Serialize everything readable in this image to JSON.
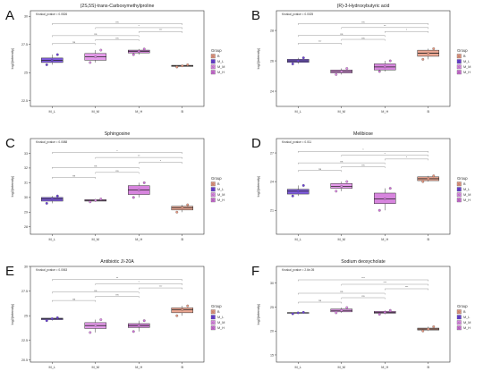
{
  "colors": {
    "M_L": "#6a3fd9",
    "M_M": "#e08ae8",
    "M_H": "#d070d8",
    "B": "#e89880",
    "frame": "#333333",
    "bracket": "#9a9a9a"
  },
  "legend_title": "Group",
  "groups": [
    "B",
    "M_L",
    "M_M",
    "M_H"
  ],
  "chart_data": [
    {
      "panel_letter": "A",
      "type": "boxplot",
      "title": "(2S,5S)-trans-Carboxymethylproline",
      "subtitle": "Kruskal_pvalue = 0.0526",
      "ylabel": "log2(intensity)",
      "categories": [
        "M_L",
        "M_M",
        "M_H",
        "B"
      ],
      "ylim": [
        22.0,
        30.5
      ],
      "yticks": [
        22.5,
        25.0,
        27.5,
        30.0
      ],
      "boxes": [
        {
          "group": "M_L",
          "min": 25.7,
          "q1": 25.9,
          "median": 26.1,
          "q3": 26.3,
          "max": 26.6,
          "points": [
            25.7,
            26.1,
            26.6
          ]
        },
        {
          "group": "M_M",
          "min": 25.9,
          "q1": 26.1,
          "median": 26.4,
          "q3": 26.7,
          "max": 27.0,
          "points": [
            25.9,
            26.4,
            27.0
          ]
        },
        {
          "group": "M_H",
          "min": 26.6,
          "q1": 26.75,
          "median": 26.9,
          "q3": 27.0,
          "max": 27.1,
          "points": [
            26.6,
            26.9,
            27.1
          ]
        },
        {
          "group": "B",
          "min": 25.5,
          "q1": 25.55,
          "median": 25.6,
          "q3": 25.65,
          "max": 25.7,
          "points": [
            25.5,
            25.6,
            25.7
          ]
        }
      ],
      "comparisons": [
        {
          "from": 0,
          "to": 1,
          "label": "ns"
        },
        {
          "from": 1,
          "to": 2,
          "label": "ns"
        },
        {
          "from": 0,
          "to": 2,
          "label": "ns"
        },
        {
          "from": 2,
          "to": 3,
          "label": "***"
        },
        {
          "from": 1,
          "to": 3,
          "label": "*"
        },
        {
          "from": 0,
          "to": 3,
          "label": "ns"
        }
      ]
    },
    {
      "panel_letter": "B",
      "type": "boxplot",
      "title": "(R)-3-Hydroxybutyric acid",
      "subtitle": "Kruskal_pvalue = 0.0025",
      "ylabel": "log2(intensity)",
      "categories": [
        "M_L",
        "M_M",
        "M_H",
        "B"
      ],
      "ylim": [
        23.0,
        29.3
      ],
      "yticks": [
        24,
        26,
        28
      ],
      "boxes": [
        {
          "group": "M_L",
          "min": 25.8,
          "q1": 25.9,
          "median": 26.0,
          "q3": 26.1,
          "max": 26.2,
          "points": [
            25.8,
            26.0,
            26.2
          ]
        },
        {
          "group": "M_M",
          "min": 25.1,
          "q1": 25.2,
          "median": 25.3,
          "q3": 25.4,
          "max": 25.5,
          "points": [
            25.1,
            25.3,
            25.5
          ]
        },
        {
          "group": "M_H",
          "min": 25.3,
          "q1": 25.4,
          "median": 25.6,
          "q3": 25.8,
          "max": 26.0,
          "points": [
            25.3,
            25.6,
            26.0
          ]
        },
        {
          "group": "B",
          "min": 26.1,
          "q1": 26.3,
          "median": 26.5,
          "q3": 26.7,
          "max": 26.8,
          "points": [
            26.1,
            26.5,
            26.8
          ]
        }
      ],
      "comparisons": [
        {
          "from": 0,
          "to": 1,
          "label": "***"
        },
        {
          "from": 1,
          "to": 2,
          "label": "ns"
        },
        {
          "from": 0,
          "to": 2,
          "label": "ns"
        },
        {
          "from": 2,
          "to": 3,
          "label": "*"
        },
        {
          "from": 1,
          "to": 3,
          "label": "**"
        },
        {
          "from": 0,
          "to": 3,
          "label": "ns"
        }
      ]
    },
    {
      "panel_letter": "C",
      "type": "boxplot",
      "title": "Sphingosine",
      "subtitle": "Kruskal_pvalue = 0.0088",
      "ylabel": "log2(intensity)",
      "categories": [
        "M_L",
        "M_M",
        "M_H",
        "B"
      ],
      "ylim": [
        27.5,
        34.0
      ],
      "yticks": [
        28,
        29,
        30,
        31,
        32,
        33
      ],
      "boxes": [
        {
          "group": "M_L",
          "min": 29.6,
          "q1": 29.75,
          "median": 29.9,
          "q3": 30.0,
          "max": 30.1,
          "points": [
            29.6,
            29.9,
            30.1
          ]
        },
        {
          "group": "M_M",
          "min": 29.7,
          "q1": 29.75,
          "median": 29.8,
          "q3": 29.85,
          "max": 29.9,
          "points": [
            29.7,
            29.8,
            29.9
          ]
        },
        {
          "group": "M_H",
          "min": 30.0,
          "q1": 30.2,
          "median": 30.5,
          "q3": 30.8,
          "max": 31.0,
          "points": [
            30.0,
            30.5,
            31.0
          ]
        },
        {
          "group": "B",
          "min": 29.0,
          "q1": 29.15,
          "median": 29.3,
          "q3": 29.4,
          "max": 29.5,
          "points": [
            29.0,
            29.3,
            29.5
          ]
        }
      ],
      "comparisons": [
        {
          "from": 0,
          "to": 1,
          "label": "ns"
        },
        {
          "from": 1,
          "to": 2,
          "label": "ns"
        },
        {
          "from": 0,
          "to": 2,
          "label": "ns"
        },
        {
          "from": 2,
          "to": 3,
          "label": "*"
        },
        {
          "from": 1,
          "to": 3,
          "label": "**"
        },
        {
          "from": 0,
          "to": 3,
          "label": "*"
        }
      ]
    },
    {
      "panel_letter": "D",
      "type": "boxplot",
      "title": "Melibiose",
      "subtitle": "Kruskal_pvalue = 0.011",
      "ylabel": "log2(intensity)",
      "categories": [
        "M_L",
        "M_M",
        "M_H",
        "B"
      ],
      "ylim": [
        18.5,
        28.5
      ],
      "yticks": [
        21,
        24,
        27
      ],
      "boxes": [
        {
          "group": "M_L",
          "min": 22.5,
          "q1": 22.7,
          "median": 23.0,
          "q3": 23.2,
          "max": 23.6,
          "points": [
            22.5,
            23.0,
            23.6
          ]
        },
        {
          "group": "M_M",
          "min": 23.0,
          "q1": 23.3,
          "median": 23.5,
          "q3": 23.8,
          "max": 24.0,
          "points": [
            23.0,
            23.5,
            24.0
          ]
        },
        {
          "group": "M_H",
          "min": 21.0,
          "q1": 21.7,
          "median": 22.2,
          "q3": 22.8,
          "max": 23.3,
          "points": [
            21.0,
            22.2,
            23.3
          ]
        },
        {
          "group": "B",
          "min": 24.0,
          "q1": 24.1,
          "median": 24.3,
          "q3": 24.5,
          "max": 24.6,
          "points": [
            24.0,
            24.3,
            24.6
          ]
        }
      ],
      "comparisons": [
        {
          "from": 0,
          "to": 1,
          "label": "ns"
        },
        {
          "from": 1,
          "to": 2,
          "label": "ns"
        },
        {
          "from": 0,
          "to": 2,
          "label": "ns"
        },
        {
          "from": 2,
          "to": 3,
          "label": "*"
        },
        {
          "from": 1,
          "to": 3,
          "label": "*"
        },
        {
          "from": 0,
          "to": 3,
          "label": "*"
        }
      ]
    },
    {
      "panel_letter": "E",
      "type": "boxplot",
      "title": "Antibiotic JI-20A",
      "subtitle": "Kruskal_pvalue = 0.0063",
      "ylabel": "log2(intensity)",
      "categories": [
        "M_L",
        "M_M",
        "M_H",
        "B"
      ],
      "ylim": [
        20.3,
        30.0
      ],
      "yticks": [
        20.5,
        22.5,
        25.0,
        27.5,
        30.0
      ],
      "boxes": [
        {
          "group": "M_L",
          "min": 24.5,
          "q1": 24.6,
          "median": 24.7,
          "q3": 24.75,
          "max": 24.8,
          "points": [
            24.5,
            24.7,
            24.8
          ]
        },
        {
          "group": "M_M",
          "min": 23.3,
          "q1": 23.7,
          "median": 24.0,
          "q3": 24.3,
          "max": 24.6,
          "points": [
            23.3,
            24.0,
            24.6
          ]
        },
        {
          "group": "M_H",
          "min": 23.4,
          "q1": 23.8,
          "median": 24.0,
          "q3": 24.2,
          "max": 24.5,
          "points": [
            23.4,
            24.0,
            24.5
          ]
        },
        {
          "group": "B",
          "min": 25.0,
          "q1": 25.3,
          "median": 25.6,
          "q3": 25.8,
          "max": 26.0,
          "points": [
            25.0,
            25.6,
            26.0
          ]
        }
      ],
      "comparisons": [
        {
          "from": 0,
          "to": 1,
          "label": "ns"
        },
        {
          "from": 1,
          "to": 2,
          "label": "ns"
        },
        {
          "from": 0,
          "to": 2,
          "label": "ns"
        },
        {
          "from": 2,
          "to": 3,
          "label": "***"
        },
        {
          "from": 1,
          "to": 3,
          "label": "*"
        },
        {
          "from": 0,
          "to": 3,
          "label": "**"
        }
      ]
    },
    {
      "panel_letter": "F",
      "type": "boxplot",
      "title": "Sodium deoxycholate",
      "subtitle": "Kruskal_pvalue = 2.6e-05",
      "ylabel": "log2(intensity)",
      "categories": [
        "M_L",
        "M_M",
        "M_H",
        "B"
      ],
      "ylim": [
        13.5,
        33.5
      ],
      "yticks": [
        15,
        20,
        25,
        30
      ],
      "boxes": [
        {
          "group": "M_L",
          "min": 23.6,
          "q1": 23.7,
          "median": 23.8,
          "q3": 23.85,
          "max": 23.9,
          "points": [
            23.6,
            23.8,
            23.9
          ]
        },
        {
          "group": "M_M",
          "min": 23.8,
          "q1": 24.0,
          "median": 24.3,
          "q3": 24.6,
          "max": 24.9,
          "points": [
            23.8,
            24.3,
            24.9
          ]
        },
        {
          "group": "M_H",
          "min": 23.5,
          "q1": 23.7,
          "median": 23.9,
          "q3": 24.1,
          "max": 24.3,
          "points": [
            23.5,
            23.9,
            24.3
          ]
        },
        {
          "group": "B",
          "min": 20.0,
          "q1": 20.2,
          "median": 20.4,
          "q3": 20.6,
          "max": 20.9,
          "points": [
            20.0,
            20.4,
            20.9
          ]
        }
      ],
      "comparisons": [
        {
          "from": 0,
          "to": 1,
          "label": "ns"
        },
        {
          "from": 1,
          "to": 2,
          "label": "ns"
        },
        {
          "from": 0,
          "to": 2,
          "label": "ns"
        },
        {
          "from": 2,
          "to": 3,
          "label": "***"
        },
        {
          "from": 1,
          "to": 3,
          "label": "***"
        },
        {
          "from": 0,
          "to": 3,
          "label": "***"
        }
      ]
    }
  ]
}
